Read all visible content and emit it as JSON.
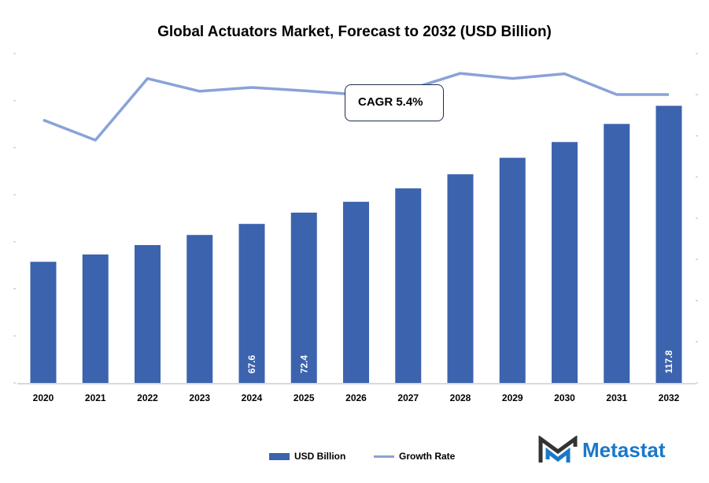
{
  "chart_data": {
    "type": "bar",
    "title": "Global Actuators Market, Forecast to 2032 (USD Billion)",
    "categories": [
      "2020",
      "2021",
      "2022",
      "2023",
      "2024",
      "2025",
      "2026",
      "2027",
      "2028",
      "2029",
      "2030",
      "2031",
      "2032"
    ],
    "series": [
      {
        "name": "USD Billion",
        "type": "bar",
        "axis": "left",
        "color": "#3c63ad",
        "values": [
          51.5,
          54.6,
          58.6,
          62.9,
          67.6,
          72.4,
          77.0,
          82.7,
          88.7,
          95.7,
          102.4,
          110.1,
          117.8
        ],
        "data_labels": {
          "4": "67.6",
          "5": "72.4",
          "12": "117.8"
        }
      },
      {
        "name": "Growth Rate",
        "type": "line",
        "axis": "right",
        "color": "#8aa2d8",
        "values": [
          5.59,
          5.16,
          6.47,
          6.2,
          6.28,
          6.21,
          6.13,
          6.23,
          6.58,
          6.47,
          6.57,
          6.13,
          6.13
        ]
      }
    ],
    "ylim": [
      0,
      140
    ],
    "y2lim": [
      0,
      7
    ],
    "annotation": "CAGR 5.4%",
    "legend_position": "bottom"
  },
  "brand": {
    "name": "Metastat"
  }
}
